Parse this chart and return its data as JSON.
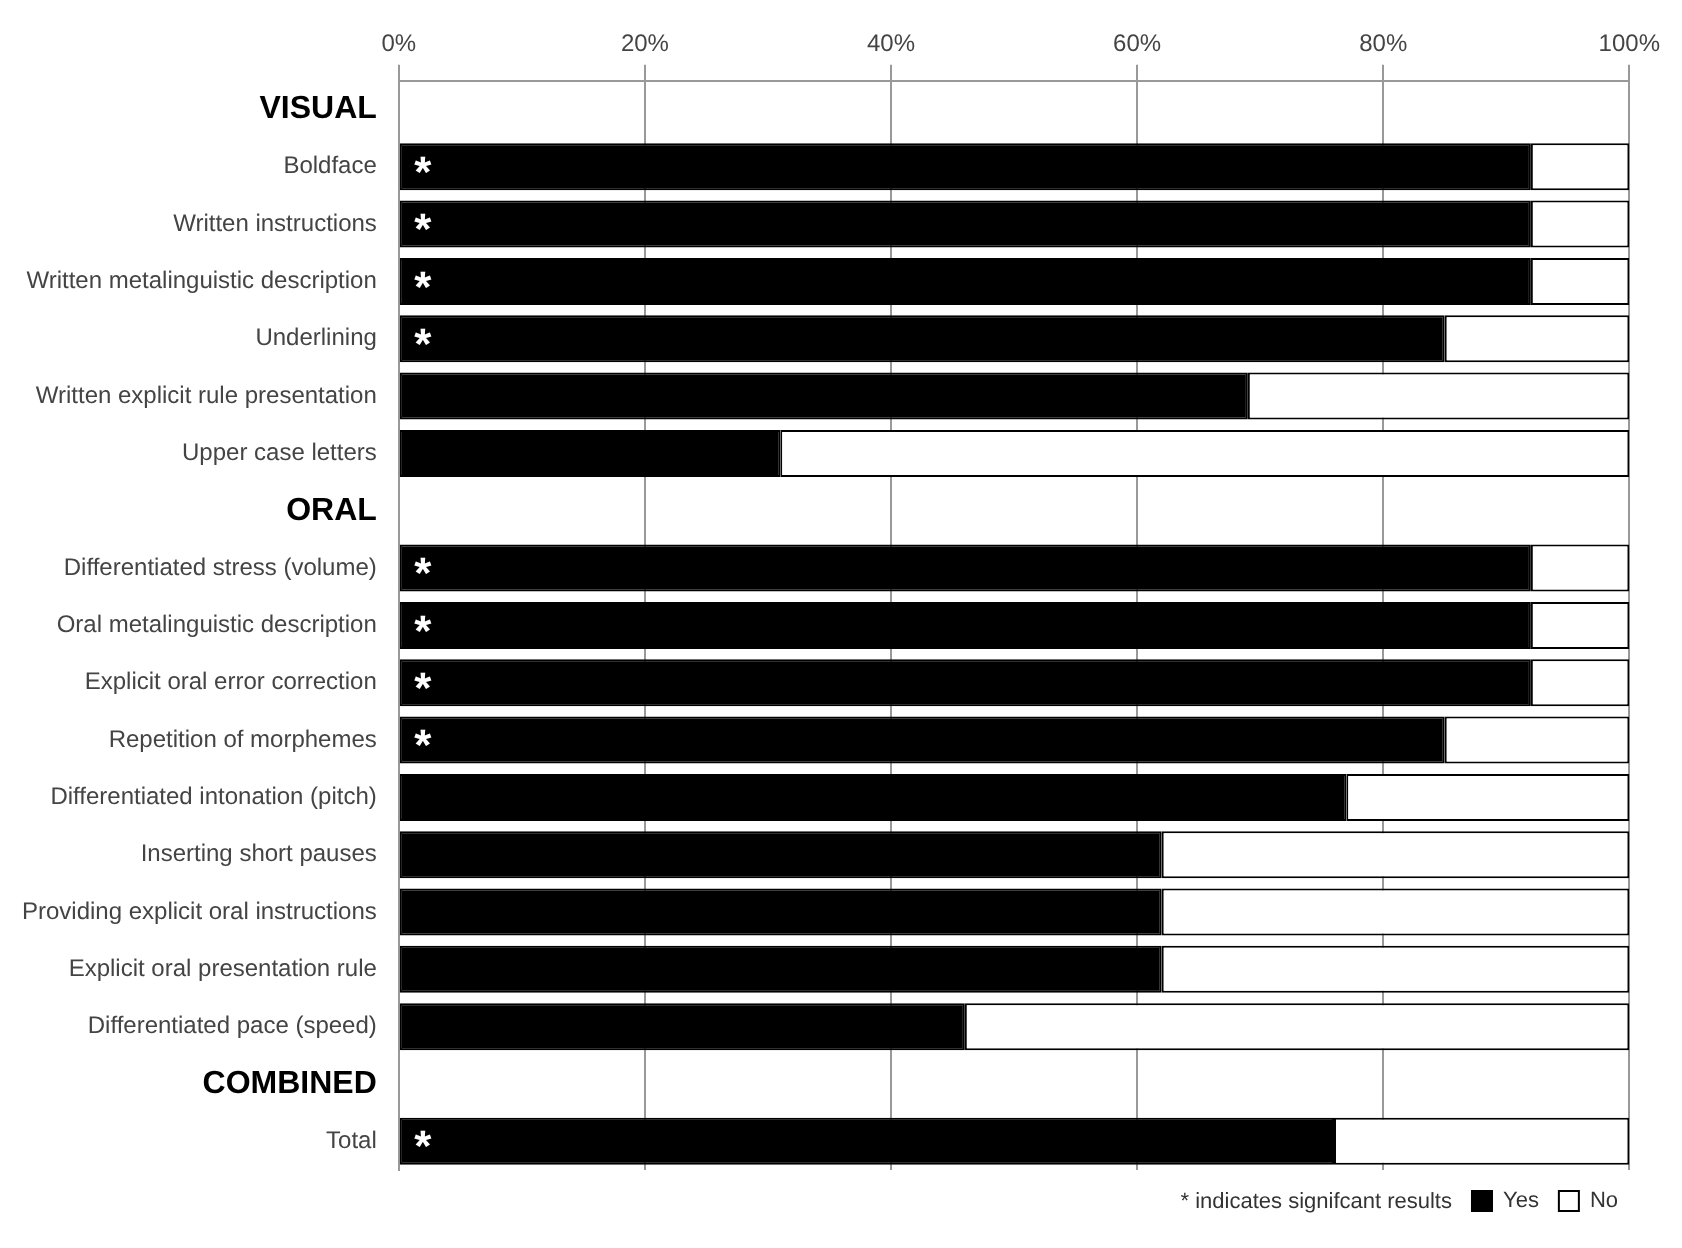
{
  "chart_data": {
    "type": "bar",
    "orientation": "horizontal",
    "stacked": true,
    "categories": [
      "VISUAL",
      "Boldface",
      "Written instructions",
      "Written metalinguistic description",
      "Underlining",
      "Written explicit rule presentation",
      "Upper case letters",
      "ORAL",
      "Differentiated stress (volume)",
      "Oral metalinguistic description",
      "Explicit oral error correction",
      "Repetition of morphemes",
      "Differentiated intonation (pitch)",
      "Inserting short pauses",
      "Providing explicit oral instructions",
      "Explicit oral presentation rule",
      "Differentiated pace (speed)",
      "COMBINED",
      "Total"
    ],
    "series": [
      {
        "name": "Yes",
        "color": "#000000",
        "values": [
          null,
          92,
          92,
          92,
          85,
          69,
          31,
          null,
          92,
          92,
          92,
          85,
          77,
          62,
          62,
          62,
          46,
          null,
          76
        ]
      },
      {
        "name": "No",
        "color": "#ffffff",
        "values": [
          null,
          8,
          8,
          8,
          15,
          31,
          69,
          null,
          8,
          8,
          8,
          15,
          23,
          38,
          38,
          38,
          54,
          null,
          24
        ]
      }
    ],
    "xlim": [
      0,
      100
    ],
    "xticks": [
      {
        "value": 0,
        "label": "0%"
      },
      {
        "value": 20,
        "label": "20%"
      },
      {
        "value": 40,
        "label": "40%"
      },
      {
        "value": 60,
        "label": "60%"
      },
      {
        "value": 80,
        "label": "80%"
      },
      {
        "value": 100,
        "label": "100%"
      }
    ],
    "grid": "x",
    "legend": "bottom right",
    "annotations": [
      {
        "text": "*",
        "y": "Boldface"
      },
      {
        "text": "*",
        "y": "Written instructions"
      },
      {
        "text": "*",
        "y": "Written metalinguistic description"
      },
      {
        "text": "*",
        "y": "Underlining"
      },
      {
        "text": "*",
        "y": "Differentiated stress (volume)"
      },
      {
        "text": "*",
        "y": "Oral metalinguistic description"
      },
      {
        "text": "*",
        "y": "Explicit oral error correction"
      },
      {
        "text": "*",
        "y": "Repetition of morphemes"
      },
      {
        "text": "*",
        "y": "Total"
      },
      "* indicates signifcant results"
    ]
  }
}
